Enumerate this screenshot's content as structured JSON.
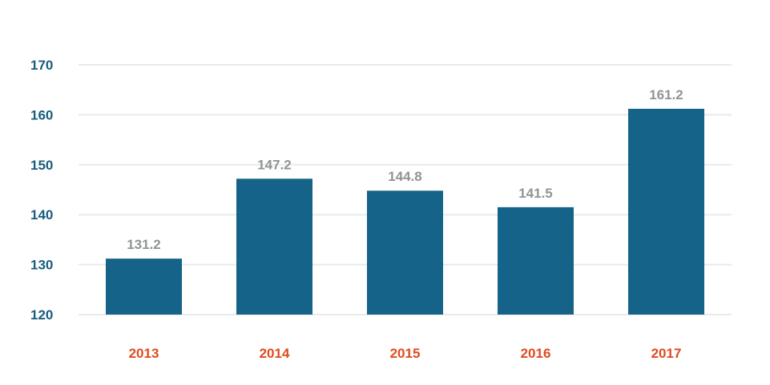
{
  "chart_data": {
    "type": "bar",
    "categories": [
      "2013",
      "2014",
      "2015",
      "2016",
      "2017"
    ],
    "values": [
      131.2,
      147.2,
      144.8,
      141.5,
      161.2
    ],
    "data_labels": [
      "131.2",
      "147.2",
      "144.8",
      "141.5",
      "161.2"
    ],
    "yticks": [
      120,
      130,
      140,
      150,
      160,
      170
    ],
    "ylim": [
      120,
      170
    ],
    "grid": true,
    "legend": "none",
    "title": "",
    "xlabel": "",
    "ylabel": ""
  },
  "colors": {
    "bar": "#156388",
    "ytick_label": "#1a5d7e",
    "xtick_label": "#e04a1f",
    "data_label": "#8f9594",
    "gridline": "#e8eaeb"
  }
}
